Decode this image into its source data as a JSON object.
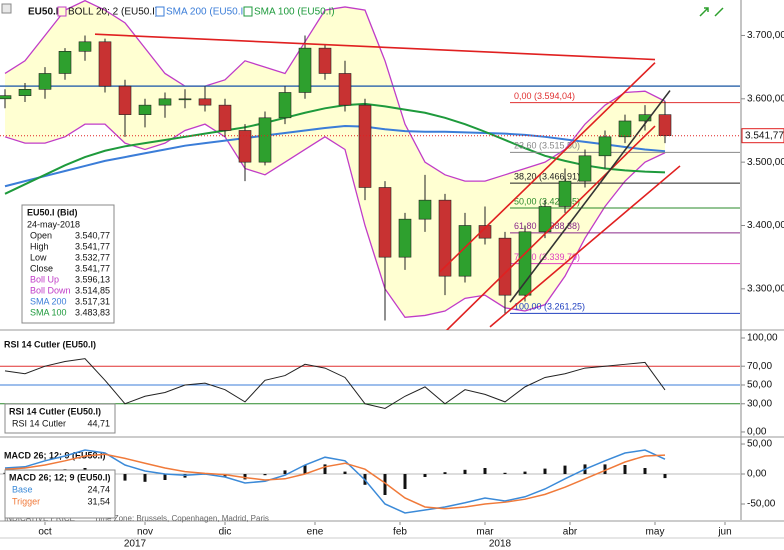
{
  "chart_data": [
    {
      "type": "candlestick",
      "title": "EU50.I",
      "x": [
        0,
        1,
        2,
        3,
        4,
        5,
        6,
        7,
        8,
        9,
        10,
        11,
        12,
        13,
        14,
        15,
        16,
        17,
        18,
        19,
        20,
        21,
        22,
        23,
        24,
        25,
        26,
        27,
        28,
        29,
        30,
        31,
        32,
        33
      ],
      "open": [
        3600,
        3605,
        3615,
        3640,
        3675,
        3690,
        3620,
        3575,
        3590,
        3600,
        3600,
        3590,
        3550,
        3500,
        3570,
        3610,
        3680,
        3640,
        3590,
        3460,
        3350,
        3410,
        3440,
        3320,
        3400,
        3380,
        3290,
        3390,
        3430,
        3470,
        3510,
        3540,
        3565,
        3575
      ],
      "high": [
        3615,
        3625,
        3650,
        3680,
        3700,
        3695,
        3630,
        3600,
        3610,
        3615,
        3620,
        3600,
        3560,
        3580,
        3620,
        3700,
        3685,
        3660,
        3600,
        3470,
        3420,
        3480,
        3450,
        3420,
        3430,
        3390,
        3400,
        3440,
        3490,
        3520,
        3550,
        3575,
        3590,
        3596
      ],
      "low": [
        3585,
        3595,
        3600,
        3630,
        3660,
        3610,
        3540,
        3555,
        3570,
        3585,
        3580,
        3540,
        3470,
        3495,
        3560,
        3600,
        3630,
        3580,
        3440,
        3250,
        3330,
        3390,
        3290,
        3310,
        3370,
        3261,
        3280,
        3380,
        3420,
        3460,
        3490,
        3530,
        3550,
        3530
      ],
      "close": [
        3605,
        3615,
        3640,
        3675,
        3690,
        3620,
        3575,
        3590,
        3600,
        3600,
        3590,
        3550,
        3500,
        3570,
        3610,
        3680,
        3640,
        3590,
        3460,
        3350,
        3410,
        3440,
        3320,
        3400,
        3380,
        3290,
        3390,
        3430,
        3470,
        3510,
        3540,
        3565,
        3575,
        3541.77
      ],
      "up_color": "#2ea02e",
      "down_color": "#c83232",
      "series": [
        {
          "name": "BOLL 20; 2 (EU50.I)",
          "color": "#c03cc8",
          "fill": "#ffffd2",
          "upper": [
            3640,
            3660,
            3700,
            3740,
            3755,
            3740,
            3720,
            3680,
            3640,
            3620,
            3620,
            3630,
            3660,
            3650,
            3640,
            3690,
            3740,
            3745,
            3740,
            3660,
            3560,
            3500,
            3480,
            3470,
            3470,
            3480,
            3490,
            3500,
            3520,
            3560,
            3590,
            3610,
            3612,
            3596.13
          ],
          "lower": [
            3540,
            3530,
            3530,
            3540,
            3560,
            3560,
            3530,
            3520,
            3530,
            3550,
            3560,
            3540,
            3490,
            3480,
            3500,
            3520,
            3540,
            3520,
            3400,
            3300,
            3255,
            3258,
            3265,
            3285,
            3290,
            3270,
            3265,
            3275,
            3320,
            3380,
            3430,
            3470,
            3500,
            3514.85
          ]
        },
        {
          "name": "SMA 200 (EU50.I)",
          "color": "#3b7dd8",
          "values": [
            3462,
            3470,
            3478,
            3486,
            3494,
            3502,
            3508,
            3514,
            3520,
            3526,
            3530,
            3534,
            3538,
            3542,
            3546,
            3550,
            3554,
            3557,
            3556,
            3552,
            3549,
            3548,
            3548,
            3547,
            3546,
            3545,
            3543,
            3540,
            3536,
            3532,
            3528,
            3524,
            3520,
            3517.31
          ]
        },
        {
          "name": "SMA 100 (EU50.I)",
          "color": "#1e9a3c",
          "values": [
            3450,
            3465,
            3480,
            3495,
            3508,
            3518,
            3525,
            3530,
            3535,
            3540,
            3545,
            3550,
            3555,
            3562,
            3570,
            3578,
            3585,
            3590,
            3592,
            3588,
            3583,
            3578,
            3570,
            3560,
            3548,
            3535,
            3522,
            3510,
            3502,
            3495,
            3490,
            3487,
            3485,
            3483.83
          ]
        }
      ],
      "xlim": [
        -0.25,
        36.75
      ],
      "ylim": [
        3235,
        3756
      ],
      "yticks": [
        {
          "value": 3700,
          "label": "3.700,00"
        },
        {
          "value": 3600,
          "label": "3.600,00"
        },
        {
          "value": 3500,
          "label": "3.500,00"
        },
        {
          "value": 3400,
          "label": "3.400,00"
        },
        {
          "value": 3300,
          "label": "3.300,00"
        }
      ],
      "last_price": {
        "value": 3541.77,
        "label": "3.541,77",
        "color": "#e02020"
      },
      "levels": [
        {
          "value": 3620,
          "color": "#3b6fb0"
        }
      ],
      "fibonacci": [
        {
          "label": "0,00 (3.594,04)",
          "value": 3594.04,
          "color": "#e03030"
        },
        {
          "label": "23,60 (3.515,50)",
          "value": 3515.5,
          "color": "#888888"
        },
        {
          "label": "38,20 (3.466,91)",
          "value": 3466.91,
          "color": "#222222"
        },
        {
          "label": "50,00 (3.427,65)",
          "value": 3427.65,
          "color": "#2a8a2a"
        },
        {
          "label": "61,80 (3.388,38)",
          "value": 3388.38,
          "color": "#8a2a8a"
        },
        {
          "label": "76,40 (3.339,79)",
          "value": 3339.79,
          "color": "#e040c0"
        },
        {
          "label": "100,00 (3.261,25)",
          "value": 3261.25,
          "color": "#2040c0"
        }
      ],
      "trendlines": [
        {
          "x": [
            4.5,
            32.5
          ],
          "y": [
            3702,
            3662
          ],
          "color": "#e02020"
        },
        {
          "x": [
            21.75,
            32.5
          ],
          "y": [
            3327,
            3657
          ],
          "color": "#e02020"
        },
        {
          "x": [
            22,
            32.5
          ],
          "y": [
            3232,
            3557
          ],
          "color": "#e02020"
        },
        {
          "x": [
            24.25,
            33.75
          ],
          "y": [
            3240,
            3494
          ],
          "color": "#e02020"
        },
        {
          "x": [
            25.25,
            33.25
          ],
          "y": [
            3279,
            3613
          ],
          "color": "#333333"
        }
      ],
      "info_box": {
        "title": "EU50.I (Bid)",
        "date": "24-may-2018",
        "rows": [
          {
            "label": "Open",
            "value": "3.540,77",
            "color": "#111111"
          },
          {
            "label": "High",
            "value": "3.541,77",
            "color": "#111111"
          },
          {
            "label": "Low",
            "value": "3.532,77",
            "color": "#111111"
          },
          {
            "label": "Close",
            "value": "3.541,77",
            "color": "#111111"
          },
          {
            "label": "Boll Up",
            "value": "3.596,13",
            "color": "#c03cc8"
          },
          {
            "label": "Boll Down",
            "value": "3.514,85",
            "color": "#c03cc8"
          },
          {
            "label": "SMA 200",
            "value": "3.517,31",
            "color": "#3b7dd8"
          },
          {
            "label": "SMA 100",
            "value": "3.483,83",
            "color": "#1e9a3c"
          }
        ]
      }
    },
    {
      "type": "line",
      "title": "RSI 14 Cutler (EU50.I)",
      "x": [
        0,
        1,
        2,
        3,
        4,
        5,
        6,
        7,
        8,
        9,
        10,
        11,
        12,
        13,
        14,
        15,
        16,
        17,
        18,
        19,
        20,
        21,
        22,
        23,
        24,
        25,
        26,
        27,
        28,
        29,
        30,
        31,
        32,
        33
      ],
      "series": [
        {
          "name": "RSI 14 Cutler",
          "color": "#222222",
          "last_label": "44,71",
          "values": [
            65,
            62,
            70,
            75,
            78,
            55,
            30,
            38,
            42,
            50,
            52,
            45,
            32,
            55,
            60,
            72,
            68,
            58,
            30,
            25,
            38,
            48,
            30,
            45,
            40,
            32,
            48,
            58,
            62,
            68,
            70,
            72,
            74,
            44.71
          ]
        }
      ],
      "xlim": [
        -0.25,
        36.75
      ],
      "ylim": [
        -4.3,
        103.2
      ],
      "yticks": [
        {
          "value": 100,
          "label": "100,00"
        },
        {
          "value": 70,
          "label": "70,00"
        },
        {
          "value": 50,
          "label": "50,00"
        },
        {
          "value": 30,
          "label": "30,00"
        },
        {
          "value": 0,
          "label": "0,00"
        }
      ],
      "levels": [
        {
          "value": 70,
          "color": "#e03030"
        },
        {
          "value": 50,
          "color": "#3b7dd8"
        },
        {
          "value": 30,
          "color": "#2a8a2a"
        }
      ]
    },
    {
      "type": "macd",
      "title": "MACD 26; 12; 9 (EU50.I)",
      "x": [
        0,
        1,
        2,
        3,
        4,
        5,
        6,
        7,
        8,
        9,
        10,
        11,
        12,
        13,
        14,
        15,
        16,
        17,
        18,
        19,
        20,
        21,
        22,
        23,
        24,
        25,
        26,
        27,
        28,
        29,
        30,
        31,
        32,
        33
      ],
      "series": [
        {
          "name": "Base",
          "color": "#3b8ad8",
          "last_label": "24,74",
          "values": [
            10,
            12,
            22,
            30,
            40,
            35,
            15,
            5,
            0,
            -2,
            0,
            -5,
            -15,
            -12,
            -2,
            15,
            28,
            22,
            -10,
            -50,
            -65,
            -60,
            -55,
            -48,
            -40,
            -45,
            -38,
            -25,
            -8,
            8,
            22,
            35,
            40,
            24.74
          ]
        },
        {
          "name": "Trigger",
          "color": "#f07a3a",
          "last_label": "31,54",
          "values": [
            8,
            10,
            15,
            22,
            30,
            33,
            26,
            18,
            10,
            4,
            1,
            -1,
            -6,
            -10,
            -8,
            0,
            12,
            18,
            8,
            -15,
            -40,
            -55,
            -58,
            -55,
            -50,
            -47,
            -42,
            -34,
            -22,
            -8,
            6,
            20,
            30,
            31.54
          ]
        }
      ],
      "histogram": [
        2,
        2,
        7,
        8,
        10,
        2,
        -11,
        -13,
        -10,
        -6,
        -1,
        -4,
        -9,
        -2,
        6,
        15,
        16,
        4,
        -18,
        -35,
        -25,
        -5,
        3,
        7,
        10,
        2,
        4,
        9,
        14,
        16,
        16,
        15,
        10,
        -6.8
      ],
      "xlim": [
        -0.25,
        36.75
      ],
      "ylim": [
        -76.7,
        56.7
      ],
      "yticks": [
        {
          "value": 50,
          "label": "50,00"
        },
        {
          "value": 0,
          "label": "0,00"
        },
        {
          "value": -50,
          "label": "-50,00"
        }
      ],
      "xticks": [
        {
          "value": 2,
          "label": "oct"
        },
        {
          "value": 7,
          "label": "nov"
        },
        {
          "value": 11,
          "label": "dic"
        },
        {
          "value": 15.5,
          "label": "ene"
        },
        {
          "value": 19.75,
          "label": "feb"
        },
        {
          "value": 24,
          "label": "mar"
        },
        {
          "value": 28.25,
          "label": "abr"
        },
        {
          "value": 32.5,
          "label": "may"
        },
        {
          "value": 36,
          "label": "jun"
        }
      ],
      "year_ticks": [
        {
          "value": 6.5,
          "label": "2017"
        },
        {
          "value": 24.75,
          "label": "2018"
        }
      ]
    }
  ],
  "footer": {
    "price_type": "INDICATIVE PRICE",
    "time_zone": "Time Zone: Brussels, Copenhagen, Madrid, Paris"
  }
}
